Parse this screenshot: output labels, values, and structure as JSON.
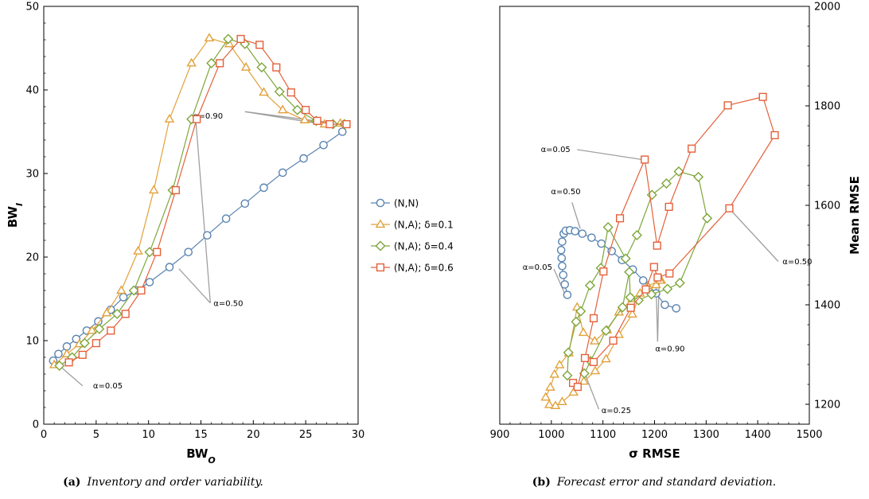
{
  "colors": {
    "NN": "#5B84B1",
    "NA01": "#E1A13A",
    "NA04": "#7DA63A",
    "NA06": "#E4603A",
    "leader": "#A0A0A0"
  },
  "legend": [
    {
      "label": "(N,N)",
      "marker": "circle",
      "color_key": "NN"
    },
    {
      "label": "(N,A); δ=0.1",
      "marker": "triangle",
      "color_key": "NA01"
    },
    {
      "label": "(N,A); δ=0.4",
      "marker": "diamond",
      "color_key": "NA04"
    },
    {
      "label": "(N,A); δ=0.6",
      "marker": "square",
      "color_key": "NA06"
    }
  ],
  "chart_data": [
    {
      "type": "line",
      "caption_tag": "(a)",
      "caption_text": "Inventory and order variability.",
      "xlabel": "BW",
      "xlabel_sub": "O",
      "ylabel": "BW",
      "ylabel_sub": "I",
      "xlim": [
        0,
        30
      ],
      "ylim": [
        0,
        50
      ],
      "xticks": [
        0,
        5,
        10,
        15,
        20,
        25,
        30
      ],
      "yticks": [
        0,
        10,
        20,
        30,
        40,
        50
      ],
      "series": [
        {
          "name": "(N,N)",
          "marker": "circle",
          "color_key": "NN",
          "points": [
            [
              0.9,
              7.6
            ],
            [
              1.4,
              8.4
            ],
            [
              2.2,
              9.3
            ],
            [
              3.1,
              10.2
            ],
            [
              4.1,
              11.2
            ],
            [
              5.2,
              12.3
            ],
            [
              6.4,
              13.7
            ],
            [
              7.6,
              15.2
            ],
            [
              8.9,
              16.0
            ],
            [
              10.1,
              17.0
            ],
            [
              12.0,
              18.8
            ],
            [
              13.8,
              20.6
            ],
            [
              15.6,
              22.6
            ],
            [
              17.4,
              24.6
            ],
            [
              19.2,
              26.4
            ],
            [
              21.0,
              28.3
            ],
            [
              22.8,
              30.1
            ],
            [
              24.8,
              31.8
            ],
            [
              26.7,
              33.4
            ],
            [
              28.5,
              35.0
            ]
          ]
        },
        {
          "name": "(N,A); δ=0.1",
          "marker": "triangle",
          "color_key": "NA01",
          "points": [
            [
              1.0,
              7.1
            ],
            [
              2.2,
              8.4
            ],
            [
              3.4,
              9.6
            ],
            [
              4.6,
              11.2
            ],
            [
              6.0,
              13.3
            ],
            [
              7.4,
              16.0
            ],
            [
              9.0,
              20.7
            ],
            [
              10.5,
              28.0
            ],
            [
              12.0,
              36.5
            ],
            [
              14.1,
              43.2
            ],
            [
              15.8,
              46.2
            ],
            [
              17.7,
              45.5
            ],
            [
              19.3,
              42.7
            ],
            [
              21.0,
              39.7
            ],
            [
              22.8,
              37.6
            ],
            [
              24.9,
              36.4
            ],
            [
              26.8,
              35.9
            ],
            [
              28.3,
              36.0
            ]
          ]
        },
        {
          "name": "(N,A); δ=0.4",
          "marker": "diamond",
          "color_key": "NA04",
          "points": [
            [
              1.5,
              7.0
            ],
            [
              2.7,
              8.0
            ],
            [
              3.9,
              9.7
            ],
            [
              5.3,
              11.4
            ],
            [
              7.0,
              13.2
            ],
            [
              8.6,
              16.0
            ],
            [
              10.1,
              20.6
            ],
            [
              12.3,
              28.0
            ],
            [
              14.1,
              36.5
            ],
            [
              16.0,
              43.2
            ],
            [
              17.6,
              46.1
            ],
            [
              19.2,
              45.5
            ],
            [
              20.8,
              42.7
            ],
            [
              22.5,
              39.8
            ],
            [
              24.2,
              37.6
            ],
            [
              26.0,
              36.3
            ],
            [
              27.6,
              35.9
            ],
            [
              28.7,
              35.9
            ]
          ]
        },
        {
          "name": "(N,A); δ=0.6",
          "marker": "square",
          "color_key": "NA06",
          "points": [
            [
              2.4,
              7.4
            ],
            [
              3.7,
              8.3
            ],
            [
              5.0,
              9.7
            ],
            [
              6.4,
              11.2
            ],
            [
              7.8,
              13.2
            ],
            [
              9.3,
              16.0
            ],
            [
              10.8,
              20.6
            ],
            [
              12.6,
              28.0
            ],
            [
              14.6,
              36.5
            ],
            [
              16.8,
              43.2
            ],
            [
              18.8,
              46.1
            ],
            [
              20.6,
              45.4
            ],
            [
              22.2,
              42.7
            ],
            [
              23.6,
              39.7
            ],
            [
              25.0,
              37.6
            ],
            [
              26.1,
              36.3
            ],
            [
              27.3,
              35.9
            ],
            [
              28.9,
              35.9
            ]
          ]
        }
      ],
      "annotations": [
        {
          "text": "α=0.90",
          "tx": 17.1,
          "ty": 36.9,
          "anchor": "end",
          "targets": [
            [
              26.6,
              35.9
            ],
            [
              28.4,
              35.9
            ]
          ],
          "via": [
            19.2,
            37.4
          ]
        },
        {
          "text": "α=0.50",
          "tx": 16.2,
          "ty": 14.5,
          "anchor": "start",
          "targets": [
            [
              12.9,
              18.6
            ],
            [
              14.5,
              36.5
            ]
          ],
          "via": [
            15.9,
            14.5
          ]
        },
        {
          "text": "α=0.05",
          "tx": 4.7,
          "ty": 4.6,
          "anchor": "start",
          "targets": [
            [
              1.5,
              7.0
            ]
          ],
          "via": [
            3.7,
            4.6
          ]
        }
      ]
    },
    {
      "type": "line",
      "caption_tag": "(b)",
      "caption_text": "Forecast error and standard deviation.",
      "xlabel": "σ RMSE",
      "ylabel": "Mean RMSE",
      "xlim": [
        900,
        1500
      ],
      "ylim": [
        1160,
        2000
      ],
      "xticks": [
        900,
        1000,
        1100,
        1200,
        1300,
        1400,
        1500
      ],
      "yticks": [
        1200,
        1400,
        1600,
        1800,
        2000
      ],
      "series": [
        {
          "name": "(N,N)",
          "marker": "circle",
          "color_key": "NN",
          "points": [
            [
              1031,
              1420
            ],
            [
              1026,
              1441
            ],
            [
              1023,
              1460
            ],
            [
              1021,
              1478
            ],
            [
              1020,
              1494
            ],
            [
              1019,
              1510
            ],
            [
              1021,
              1527
            ],
            [
              1024,
              1543
            ],
            [
              1028,
              1549
            ],
            [
              1036,
              1550
            ],
            [
              1046,
              1548
            ],
            [
              1060,
              1543
            ],
            [
              1078,
              1535
            ],
            [
              1097,
              1523
            ],
            [
              1117,
              1508
            ],
            [
              1137,
              1490
            ],
            [
              1158,
              1471
            ],
            [
              1178,
              1449
            ],
            [
              1203,
              1423
            ],
            [
              1220,
              1400
            ],
            [
              1242,
              1393
            ]
          ]
        },
        {
          "name": "(N,A); δ=0.1",
          "marker": "triangle",
          "color_key": "NA01",
          "points": [
            [
              996,
              1199
            ],
            [
              1008,
              1197
            ],
            [
              1021,
              1205
            ],
            [
              1043,
              1224
            ],
            [
              1063,
              1246
            ],
            [
              1085,
              1267
            ],
            [
              1106,
              1291
            ],
            [
              1131,
              1340
            ],
            [
              1157,
              1381
            ],
            [
              1172,
              1423
            ],
            [
              1203,
              1440
            ],
            [
              1213,
              1449
            ],
            [
              1211,
              1449
            ],
            [
              1187,
              1438
            ],
            [
              1157,
              1412
            ],
            [
              1131,
              1385
            ],
            [
              1108,
              1349
            ],
            [
              1084,
              1327
            ],
            [
              1062,
              1344
            ],
            [
              1050,
              1395
            ],
            [
              1034,
              1303
            ],
            [
              1016,
              1279
            ],
            [
              1006,
              1260
            ],
            [
              998,
              1234
            ],
            [
              989,
              1214
            ]
          ]
        },
        {
          "name": "(N,A); δ=0.4",
          "marker": "diamond",
          "color_key": "NA04",
          "points": [
            [
              1031,
              1258
            ],
            [
              1033,
              1304
            ],
            [
              1048,
              1366
            ],
            [
              1057,
              1387
            ],
            [
              1075,
              1439
            ],
            [
              1096,
              1474
            ],
            [
              1110,
              1556
            ],
            [
              1144,
              1493
            ],
            [
              1166,
              1540
            ],
            [
              1195,
              1621
            ],
            [
              1223,
              1644
            ],
            [
              1247,
              1668
            ],
            [
              1285,
              1657
            ],
            [
              1302,
              1574
            ],
            [
              1249,
              1444
            ],
            [
              1225,
              1432
            ],
            [
              1194,
              1421
            ],
            [
              1169,
              1409
            ],
            [
              1153,
              1415
            ],
            [
              1151,
              1466
            ],
            [
              1138,
              1395
            ],
            [
              1106,
              1348
            ],
            [
              1076,
              1287
            ],
            [
              1064,
              1262
            ]
          ]
        },
        {
          "name": "(N,A); δ=0.6",
          "marker": "square",
          "color_key": "NA06",
          "points": [
            [
              1042,
              1243
            ],
            [
              1051,
              1235
            ],
            [
              1065,
              1293
            ],
            [
              1082,
              1373
            ],
            [
              1101,
              1467
            ],
            [
              1133,
              1574
            ],
            [
              1181,
              1692
            ],
            [
              1205,
              1519
            ],
            [
              1228,
              1597
            ],
            [
              1272,
              1714
            ],
            [
              1342,
              1801
            ],
            [
              1410,
              1818
            ],
            [
              1433,
              1741
            ],
            [
              1345,
              1594
            ],
            [
              1229,
              1463
            ],
            [
              1206,
              1455
            ],
            [
              1199,
              1476
            ],
            [
              1183,
              1431
            ],
            [
              1154,
              1394
            ],
            [
              1120,
              1328
            ],
            [
              1082,
              1285
            ]
          ]
        }
      ],
      "annotations": [
        {
          "text": "α=0.05",
          "tx": 1037,
          "ty": 1713,
          "anchor": "end",
          "targets": [
            [
              1176,
              1692
            ]
          ],
          "via": [
            1050,
            1712
          ]
        },
        {
          "text": "α=0.50",
          "tx": 1028,
          "ty": 1628,
          "anchor": "middle",
          "targets": [
            [
              1056,
              1553
            ]
          ],
          "via": [
            1040,
            1606
          ]
        },
        {
          "text": "α=0.05",
          "tx": 973,
          "ty": 1476,
          "anchor": "middle",
          "targets": [
            [
              1027,
              1420
            ]
          ],
          "via": [
            1005,
            1472
          ]
        },
        {
          "text": "α=0.50",
          "tx": 1448,
          "ty": 1487,
          "anchor": "start",
          "targets": [
            [
              1349,
              1589
            ]
          ],
          "via": [
            1440,
            1487
          ]
        },
        {
          "text": "α=0.90",
          "tx": 1230,
          "ty": 1312,
          "anchor": "middle",
          "targets": [
            [
              1203,
              1440
            ],
            [
              1209,
              1455
            ]
          ],
          "via": [
            1206,
            1326
          ]
        },
        {
          "text": "α=0.25",
          "tx": 1097,
          "ty": 1188,
          "anchor": "start",
          "targets": [
            [
              1060,
              1275
            ]
          ],
          "via": [
            1092,
            1190
          ]
        }
      ]
    }
  ]
}
